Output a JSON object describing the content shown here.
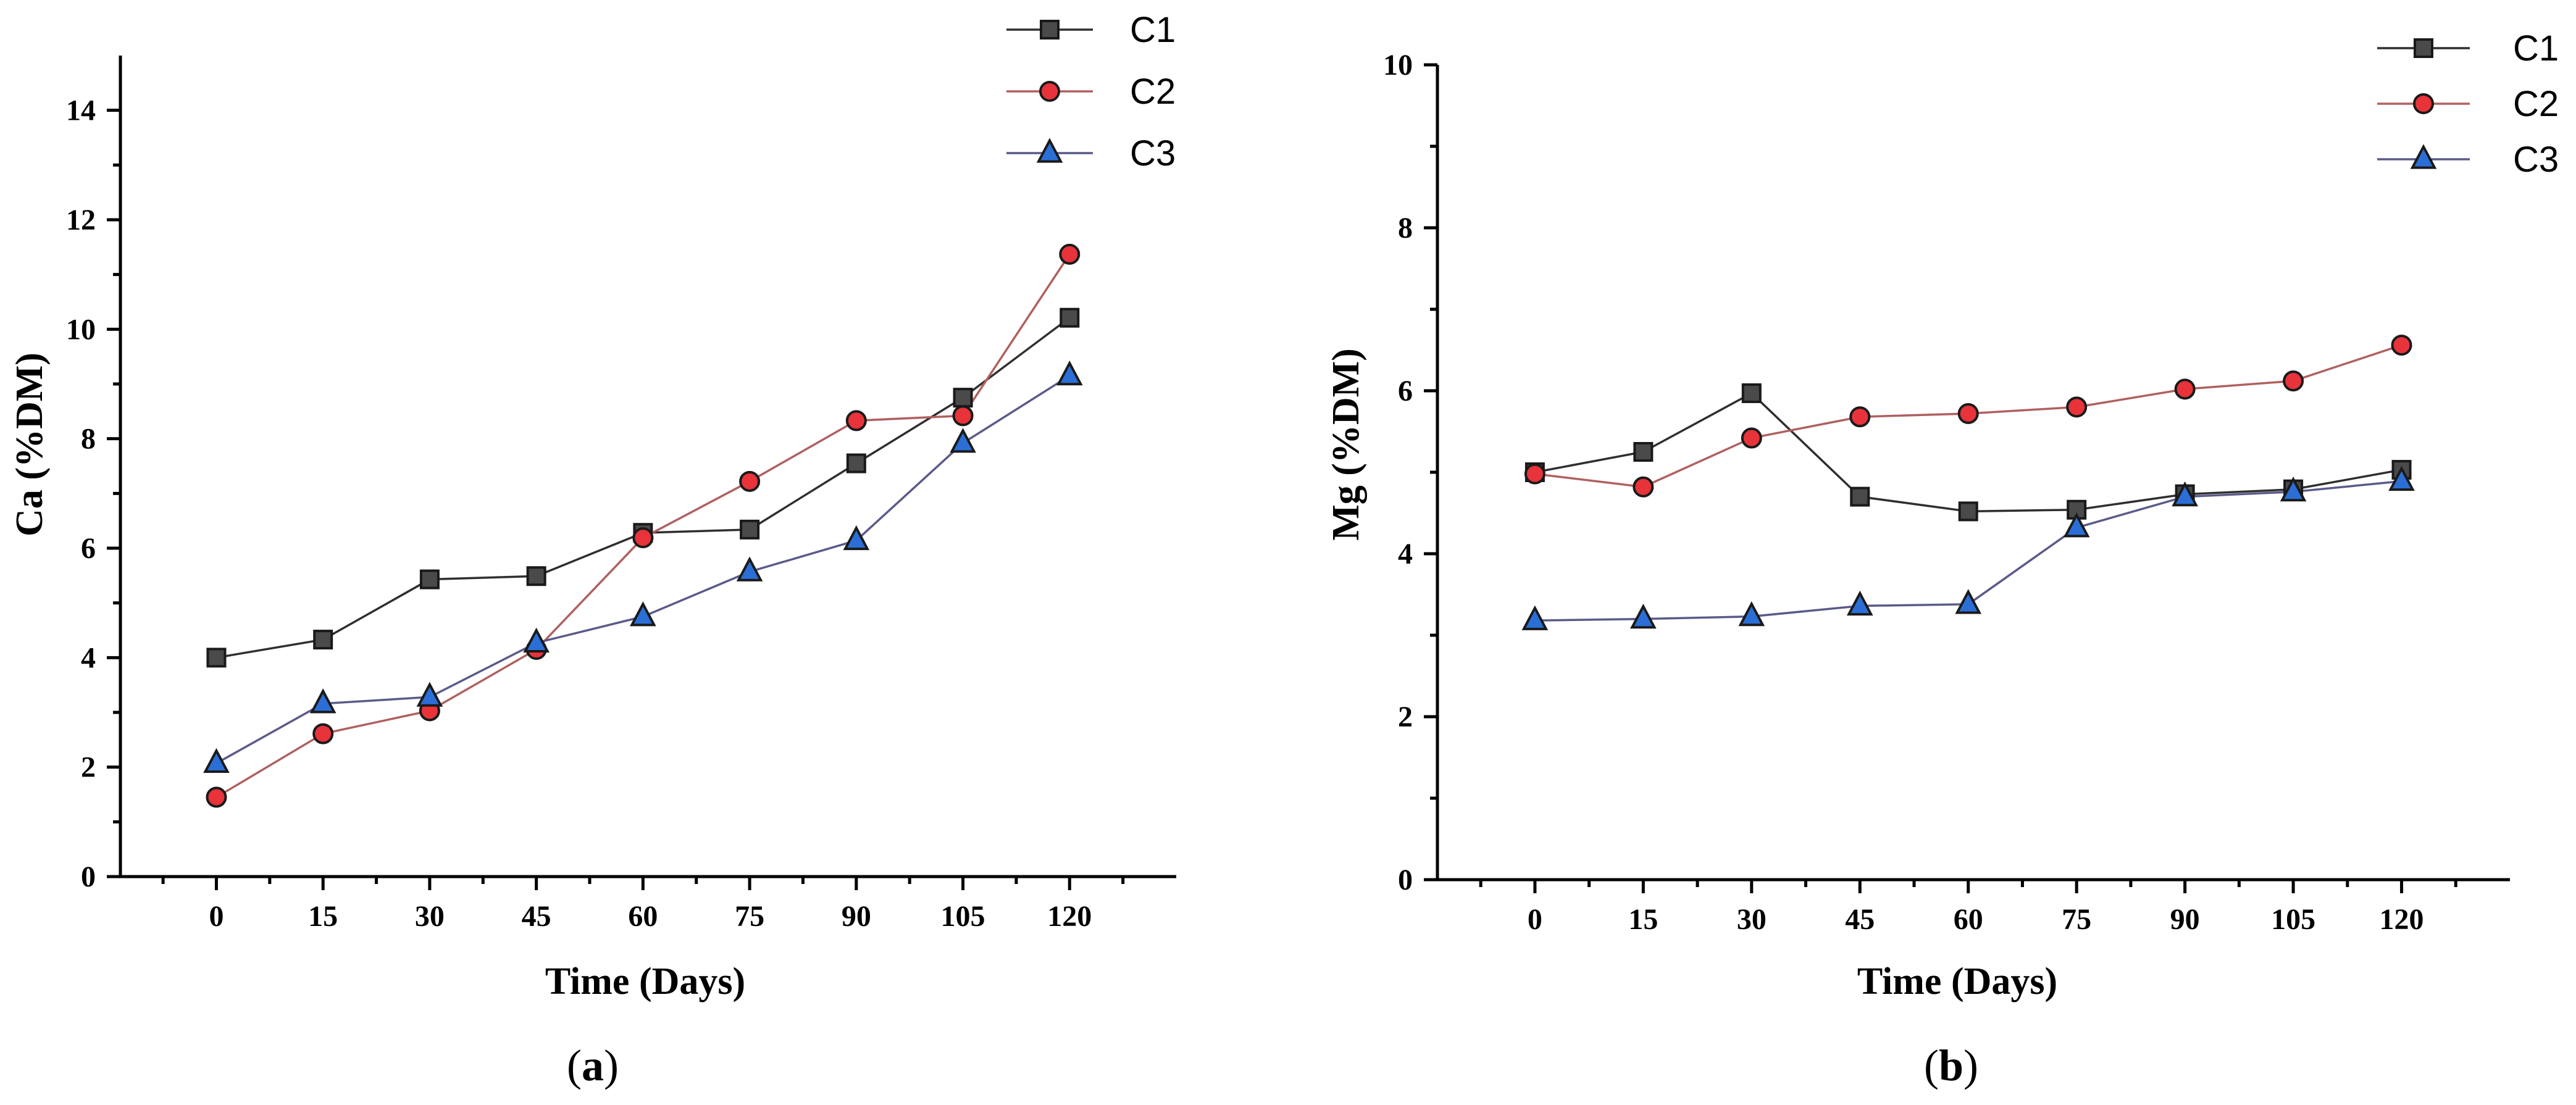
{
  "chart_data": [
    {
      "type": "line",
      "panel_label": "a",
      "xlabel": "Time (Days)",
      "ylabel": "Ca (%DM)",
      "x": [
        0,
        15,
        30,
        45,
        60,
        75,
        90,
        105,
        120
      ],
      "xticks": [
        "0",
        "15",
        "30",
        "45",
        "60",
        "75",
        "90",
        "105",
        "120"
      ],
      "xlim": [
        -13.5,
        135
      ],
      "ylim": [
        0,
        15
      ],
      "yticks": [
        0,
        2,
        4,
        6,
        8,
        10,
        12,
        14
      ],
      "legend_position": "top-right",
      "series": [
        {
          "name": "C1",
          "marker": "square",
          "color": "#4a4a4a",
          "line_color": "#2f2f2f",
          "values": [
            4.0,
            4.33,
            5.43,
            5.49,
            6.28,
            6.34,
            7.55,
            8.75,
            10.21
          ]
        },
        {
          "name": "C2",
          "marker": "circle",
          "color": "#e8333a",
          "line_color": "#b06060",
          "values": [
            1.45,
            2.61,
            3.03,
            4.15,
            6.19,
            7.22,
            8.33,
            8.42,
            11.37
          ]
        },
        {
          "name": "C3",
          "marker": "triangle",
          "color": "#2b6fd6",
          "line_color": "#5a5a8a",
          "values": [
            2.07,
            3.16,
            3.28,
            4.27,
            4.75,
            5.57,
            6.14,
            7.92,
            9.15
          ]
        }
      ]
    },
    {
      "type": "line",
      "panel_label": "b",
      "xlabel": "Time (Days)",
      "ylabel": "Mg (%DM)",
      "x": [
        0,
        15,
        30,
        45,
        60,
        75,
        90,
        105,
        120
      ],
      "xticks": [
        "0",
        "15",
        "30",
        "45",
        "60",
        "75",
        "90",
        "105",
        "120"
      ],
      "xlim": [
        -13.5,
        135
      ],
      "ylim": [
        0,
        10
      ],
      "yticks": [
        0,
        2,
        4,
        6,
        8,
        10
      ],
      "legend_position": "top-right",
      "series": [
        {
          "name": "C1",
          "marker": "square",
          "color": "#4a4a4a",
          "line_color": "#2f2f2f",
          "values": [
            5.0,
            5.25,
            5.97,
            4.7,
            4.52,
            4.54,
            4.73,
            4.79,
            5.03
          ]
        },
        {
          "name": "C2",
          "marker": "circle",
          "color": "#e8333a",
          "line_color": "#b06060",
          "values": [
            4.98,
            4.82,
            5.42,
            5.68,
            5.72,
            5.8,
            6.02,
            6.12,
            6.56
          ]
        },
        {
          "name": "C3",
          "marker": "triangle",
          "color": "#2b6fd6",
          "line_color": "#5a5a8a",
          "values": [
            3.18,
            3.2,
            3.23,
            3.36,
            3.38,
            4.32,
            4.7,
            4.76,
            4.89
          ]
        }
      ]
    }
  ]
}
